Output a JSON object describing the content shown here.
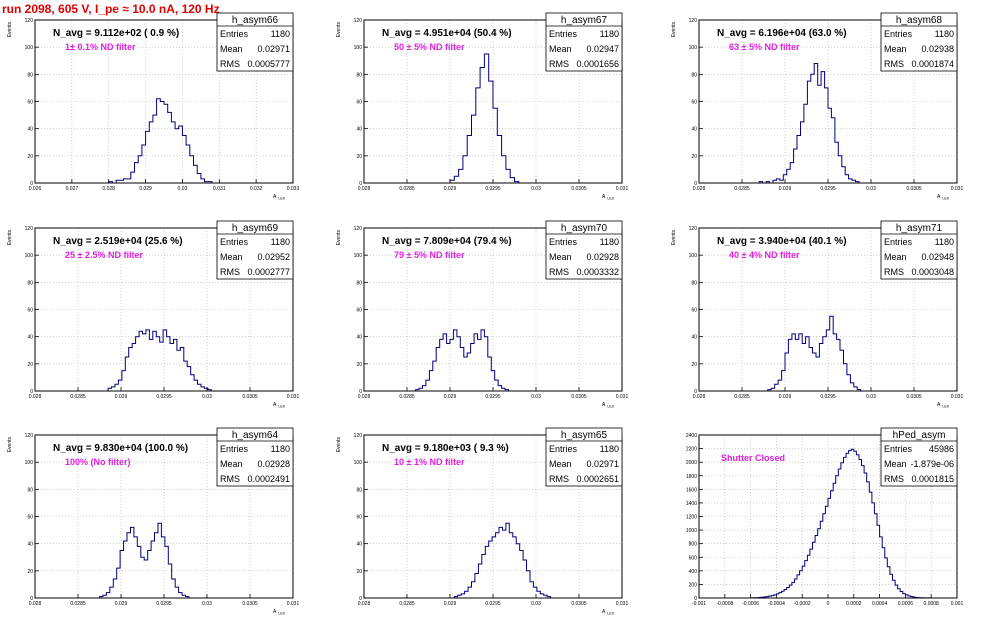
{
  "title": "run 2098,   605 V, I_pe ≈ 10.0 nA, 120 Hz",
  "stats_labels": {
    "entries": "Entries",
    "mean": "Mean",
    "rms": "RMS"
  },
  "colors": {
    "title": "#e00000",
    "annotation": "#e020e0",
    "histogram": "#00007f",
    "grid": "#b0b0b0"
  },
  "chart_data": [
    {
      "type": "histogram",
      "name": "h_asym66",
      "navg_text": "N_avg = 9.112e+02 ( 0.9 %)",
      "filter_text": "1± 0.1% ND filter",
      "entries": "1180",
      "mean": "0.02971",
      "rms": "0.0005777",
      "xlabel": "A_LED",
      "ylabel": "Events",
      "xlim": [
        0.026,
        0.033
      ],
      "ylim": [
        0,
        120
      ],
      "xticks": [
        0.026,
        0.027,
        0.028,
        0.029,
        0.03,
        0.031,
        0.032,
        0.033
      ],
      "xtick_labels": [
        "0.026",
        "0.027",
        "0.028",
        "0.029",
        "0.03",
        "0.031",
        "0.032",
        "0.033"
      ],
      "yticks": [
        0,
        20,
        40,
        60,
        80,
        100,
        120
      ],
      "ytick_labels": [
        "0",
        "20",
        "40",
        "60",
        "80",
        "100",
        "120"
      ],
      "bins": {
        "start": 0.028,
        "width": 0.0001,
        "values": [
          1,
          0,
          2,
          2,
          3,
          3,
          8,
          15,
          20,
          28,
          38,
          45,
          50,
          62,
          60,
          58,
          52,
          45,
          40,
          42,
          35,
          28,
          20,
          13,
          7,
          3,
          1,
          1
        ]
      }
    },
    {
      "type": "histogram",
      "name": "h_asym67",
      "navg_text": "N_avg = 4.951e+04 (50.4 %)",
      "filter_text": "50 ± 5% ND filter",
      "entries": "1180",
      "mean": "0.02947",
      "rms": "0.0001656",
      "xlabel": "A_LED",
      "ylabel": "Events",
      "xlim": [
        0.028,
        0.031
      ],
      "ylim": [
        0,
        120
      ],
      "xticks": [
        0.028,
        0.0285,
        0.029,
        0.0295,
        0.03,
        0.0305,
        0.031
      ],
      "xtick_labels": [
        "0.028",
        "0.0285",
        "0.029",
        "0.0295",
        "0.03",
        "0.0305",
        "0.031"
      ],
      "yticks": [
        0,
        20,
        40,
        60,
        80,
        100,
        120
      ],
      "ytick_labels": [
        "0",
        "20",
        "40",
        "60",
        "80",
        "100",
        "120"
      ],
      "bins": {
        "start": 0.029,
        "width": 5e-05,
        "values": [
          2,
          5,
          10,
          20,
          35,
          50,
          70,
          85,
          95,
          75,
          55,
          35,
          20,
          10,
          4,
          1
        ]
      }
    },
    {
      "type": "histogram",
      "name": "h_asym68",
      "navg_text": "N_avg = 6.196e+04 (63.0 %)",
      "filter_text": "63 ± 5% ND filter",
      "entries": "1180",
      "mean": "0.02938",
      "rms": "0.0001874",
      "xlabel": "A_LED",
      "ylabel": "Events",
      "xlim": [
        0.028,
        0.031
      ],
      "ylim": [
        0,
        120
      ],
      "xticks": [
        0.028,
        0.0285,
        0.029,
        0.0295,
        0.03,
        0.0305,
        0.031
      ],
      "xtick_labels": [
        "0.028",
        "0.0285",
        "0.029",
        "0.0295",
        "0.03",
        "0.0305",
        "0.031"
      ],
      "yticks": [
        0,
        20,
        40,
        60,
        80,
        100,
        120
      ],
      "ytick_labels": [
        "0",
        "20",
        "40",
        "60",
        "80",
        "100",
        "120"
      ],
      "bins": {
        "start": 0.0287,
        "width": 4e-05,
        "values": [
          1,
          0,
          1,
          0,
          2,
          3,
          2,
          6,
          10,
          15,
          25,
          35,
          45,
          58,
          75,
          80,
          88,
          72,
          82,
          70,
          55,
          48,
          30,
          20,
          12,
          6,
          3,
          2,
          1
        ]
      }
    },
    {
      "type": "histogram",
      "name": "h_asym69",
      "navg_text": "N_avg = 2.519e+04 (25.6 %)",
      "filter_text": "25 ± 2.5% ND filter",
      "entries": "1180",
      "mean": "0.02952",
      "rms": "0.0002777",
      "xlabel": "A_LED",
      "ylabel": "Events",
      "xlim": [
        0.028,
        0.031
      ],
      "ylim": [
        0,
        120
      ],
      "xticks": [
        0.028,
        0.0285,
        0.029,
        0.0295,
        0.03,
        0.0305,
        0.031
      ],
      "xtick_labels": [
        "0.028",
        "0.0285",
        "0.029",
        "0.0295",
        "0.03",
        "0.0305",
        "0.031"
      ],
      "yticks": [
        0,
        20,
        40,
        60,
        80,
        100,
        120
      ],
      "ytick_labels": [
        "0",
        "20",
        "40",
        "60",
        "80",
        "100",
        "120"
      ],
      "bins": {
        "start": 0.02885,
        "width": 4e-05,
        "values": [
          2,
          3,
          5,
          8,
          15,
          25,
          32,
          35,
          40,
          44,
          42,
          45,
          38,
          44,
          40,
          36,
          45,
          40,
          35,
          38,
          30,
          32,
          22,
          18,
          12,
          8,
          5,
          3,
          2,
          1
        ]
      }
    },
    {
      "type": "histogram",
      "name": "h_asym70",
      "navg_text": "N_avg = 7.809e+04 (79.4 %)",
      "filter_text": "79 ± 5% ND filter",
      "entries": "1180",
      "mean": "0.02928",
      "rms": "0.0003332",
      "xlabel": "A_LED",
      "ylabel": "Events",
      "xlim": [
        0.028,
        0.031
      ],
      "ylim": [
        0,
        120
      ],
      "xticks": [
        0.028,
        0.0285,
        0.029,
        0.0295,
        0.03,
        0.0305,
        0.031
      ],
      "xtick_labels": [
        "0.028",
        "0.0285",
        "0.029",
        "0.0295",
        "0.03",
        "0.0305",
        "0.031"
      ],
      "yticks": [
        0,
        20,
        40,
        60,
        80,
        100,
        120
      ],
      "ytick_labels": [
        "0",
        "20",
        "40",
        "60",
        "80",
        "100",
        "120"
      ],
      "bins": {
        "start": 0.0286,
        "width": 4e-05,
        "values": [
          1,
          2,
          4,
          8,
          15,
          22,
          32,
          38,
          42,
          35,
          38,
          45,
          40,
          32,
          25,
          28,
          35,
          42,
          38,
          45,
          40,
          25,
          15,
          8,
          4,
          2,
          1
        ]
      }
    },
    {
      "type": "histogram",
      "name": "h_asym71",
      "navg_text": "N_avg = 3.940e+04 (40.1 %)",
      "filter_text": "40 ± 4% ND filter",
      "entries": "1180",
      "mean": "0.02948",
      "rms": "0.0003048",
      "xlabel": "A_LED",
      "ylabel": "Events",
      "xlim": [
        0.028,
        0.031
      ],
      "ylim": [
        0,
        120
      ],
      "xticks": [
        0.028,
        0.0285,
        0.029,
        0.0295,
        0.03,
        0.0305,
        0.031
      ],
      "xtick_labels": [
        "0.028",
        "0.0285",
        "0.029",
        "0.0295",
        "0.03",
        "0.0305",
        "0.031"
      ],
      "yticks": [
        0,
        20,
        40,
        60,
        80,
        100,
        120
      ],
      "ytick_labels": [
        "0",
        "20",
        "40",
        "60",
        "80",
        "100",
        "120"
      ],
      "bins": {
        "start": 0.0288,
        "width": 4e-05,
        "values": [
          1,
          2,
          5,
          8,
          15,
          28,
          38,
          42,
          38,
          42,
          35,
          40,
          32,
          28,
          25,
          35,
          40,
          45,
          55,
          42,
          38,
          30,
          20,
          12,
          6,
          3,
          1
        ]
      }
    },
    {
      "type": "histogram",
      "name": "h_asym64",
      "navg_text": "N_avg = 9.830e+04 (100.0 %)",
      "filter_text": "100% (No filter)",
      "entries": "1180",
      "mean": "0.02928",
      "rms": "0.0002491",
      "xlabel": "A_LED",
      "ylabel": "Events",
      "xlim": [
        0.028,
        0.031
      ],
      "ylim": [
        0,
        120
      ],
      "xticks": [
        0.028,
        0.0285,
        0.029,
        0.0295,
        0.03,
        0.0305,
        0.031
      ],
      "xtick_labels": [
        "0.028",
        "0.0285",
        "0.029",
        "0.0295",
        "0.03",
        "0.0305",
        "0.031"
      ],
      "yticks": [
        0,
        20,
        40,
        60,
        80,
        100,
        120
      ],
      "ytick_labels": [
        "0",
        "20",
        "40",
        "60",
        "80",
        "100",
        "120"
      ],
      "bins": {
        "start": 0.02875,
        "width": 4e-05,
        "values": [
          1,
          2,
          4,
          8,
          14,
          22,
          35,
          42,
          48,
          52,
          45,
          38,
          30,
          28,
          35,
          42,
          48,
          55,
          45,
          38,
          25,
          14,
          8,
          4,
          2,
          1
        ]
      }
    },
    {
      "type": "histogram",
      "name": "h_asym65",
      "navg_text": "N_avg = 9.180e+03 ( 9.3 %)",
      "filter_text": "10 ± 1% ND filter",
      "entries": "1180",
      "mean": "0.02971",
      "rms": "0.0002651",
      "xlabel": "A_LED",
      "ylabel": "Events",
      "xlim": [
        0.028,
        0.031
      ],
      "ylim": [
        0,
        120
      ],
      "xticks": [
        0.028,
        0.0285,
        0.029,
        0.0295,
        0.03,
        0.0305,
        0.031
      ],
      "xtick_labels": [
        "0.028",
        "0.0285",
        "0.029",
        "0.0295",
        "0.03",
        "0.0305",
        "0.031"
      ],
      "yticks": [
        0,
        20,
        40,
        60,
        80,
        100,
        120
      ],
      "ytick_labels": [
        "0",
        "20",
        "40",
        "60",
        "80",
        "100",
        "120"
      ],
      "bins": {
        "start": 0.02905,
        "width": 4e-05,
        "values": [
          1,
          2,
          3,
          5,
          8,
          12,
          18,
          25,
          32,
          38,
          42,
          45,
          48,
          52,
          50,
          55,
          48,
          45,
          40,
          35,
          28,
          20,
          12,
          8,
          5,
          3,
          2,
          1
        ]
      }
    },
    {
      "type": "histogram",
      "name": "hPed_asym",
      "navg_text": "",
      "filter_text": "Shutter Closed",
      "entries": "45986",
      "mean": "-1.879e-06",
      "rms": "0.0001815",
      "xlabel": "",
      "ylabel": "",
      "xlim": [
        -0.001,
        0.001
      ],
      "ylim": [
        0,
        2400
      ],
      "xticks": [
        -0.001,
        -0.0008,
        -0.0006,
        -0.0004,
        -0.0002,
        0,
        0.0002,
        0.0004,
        0.0006,
        0.0008,
        0.001
      ],
      "xtick_labels": [
        "-0.001",
        "-0.0008",
        "-0.0006",
        "-0.0004",
        "-0.0002",
        "0",
        "0.0002",
        "0.0004",
        "0.0006",
        "0.0008",
        "0.001"
      ],
      "yticks": [
        0,
        200,
        400,
        600,
        800,
        1000,
        1200,
        1400,
        1600,
        1800,
        2000,
        2200,
        2400
      ],
      "ytick_labels": [
        "0",
        "200",
        "400",
        "600",
        "800",
        "1000",
        "1200",
        "1400",
        "1600",
        "1800",
        "2000",
        "2200",
        "2400"
      ],
      "bins": {
        "start": -0.0006,
        "width": 2e-05,
        "values": [
          2,
          3,
          5,
          8,
          12,
          15,
          20,
          28,
          35,
          45,
          60,
          80,
          100,
          125,
          155,
          190,
          230,
          280,
          340,
          400,
          470,
          550,
          630,
          720,
          820,
          920,
          1020,
          1130,
          1240,
          1350,
          1470,
          1580,
          1690,
          1800,
          1900,
          1990,
          2070,
          2130,
          2170,
          2190,
          2160,
          2110,
          2040,
          1950,
          1840,
          1710,
          1560,
          1400,
          1240,
          1070,
          900,
          740,
          590,
          460,
          350,
          260,
          190,
          135,
          95,
          65,
          45,
          30,
          20,
          13,
          8,
          5,
          3,
          2,
          1,
          1
        ]
      }
    }
  ]
}
